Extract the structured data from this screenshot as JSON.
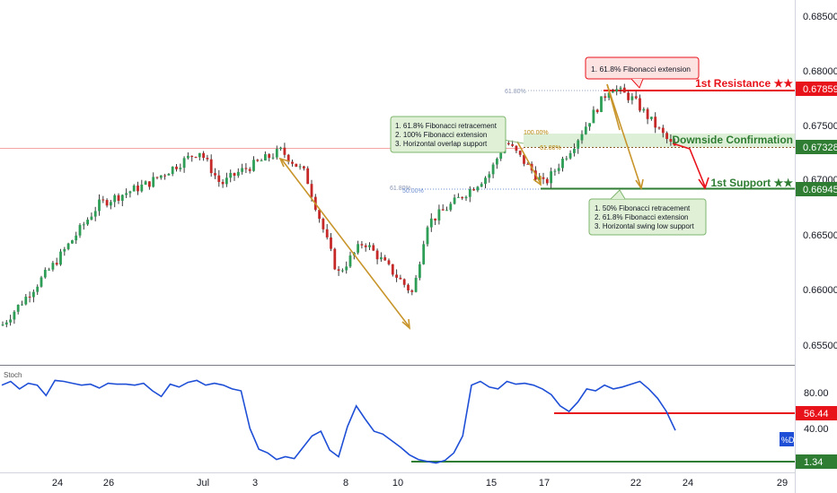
{
  "chart_data": {
    "type": "candlestick",
    "symbol_pair_note": "",
    "price_axis": {
      "ticks": [
        "0.68500",
        "0.68000",
        "0.67500",
        "0.67000",
        "0.66500",
        "0.66000",
        "0.65500"
      ],
      "ylim": [
        0.6532,
        0.6866
      ]
    },
    "time_axis": {
      "ticks": [
        "24",
        "26",
        "Jul",
        "3",
        "8",
        "10",
        "15",
        "17",
        "22",
        "24",
        "29"
      ]
    },
    "price_labels": [
      {
        "name": "1st Resistance ★★",
        "value": "0.67859",
        "color": "#e8121a"
      },
      {
        "name": "Downside Confirmation",
        "value": "0.67328",
        "color": "#2e7d32"
      },
      {
        "name": "1st Support ★★",
        "value": "0.66945",
        "color": "#2e7d32"
      }
    ],
    "fib_labels": [
      {
        "text": "61.80%",
        "price": 0.6785
      },
      {
        "text": "100.00%",
        "price": 0.6741
      },
      {
        "text": "61.80%",
        "price": 0.6733
      },
      {
        "text": "61.80%",
        "price": 0.66945
      },
      {
        "text": "50.00%",
        "price": 0.66935
      }
    ],
    "annotations": [
      {
        "id": "resistance",
        "lines": [
          "1. 61.8% Fibonacci extension"
        ]
      },
      {
        "id": "confirmation",
        "lines": [
          "1. 61.8% Fibonacci retracement",
          "2. 100% Fibonacci extension",
          "3. Horizontal overlap support"
        ]
      },
      {
        "id": "support",
        "lines": [
          "1. 50% Fibonacci retracement",
          "2. 61.8% Fibonacci extension",
          "3. Horizontal swing low support"
        ]
      }
    ],
    "trend_anchors": [
      {
        "price": 0.6568,
        "label": "start"
      },
      {
        "price": 0.6743,
        "label": "peak"
      },
      {
        "price": 0.6735,
        "label": "pullback-1"
      },
      {
        "price": 0.6786,
        "label": "high"
      },
      {
        "price": 0.672,
        "label": "b"
      },
      {
        "price": 0.6755,
        "label": "c"
      },
      {
        "price": 0.673,
        "label": "d"
      },
      {
        "price": 0.6707,
        "label": "e"
      },
      {
        "price": 0.6743,
        "label": "f"
      },
      {
        "price": 0.6735,
        "label": "g"
      },
      {
        "price": 0.6698,
        "label": "h"
      },
      {
        "price": 0.6624,
        "label": "i"
      },
      {
        "price": 0.6597,
        "label": "j"
      },
      {
        "price": 0.6645,
        "label": "k"
      },
      {
        "price": 0.6679,
        "label": "l"
      },
      {
        "price": 0.6728,
        "label": "m"
      },
      {
        "price": 0.6697,
        "label": "n"
      },
      {
        "price": 0.6738,
        "label": "o"
      },
      {
        "price": 0.6787,
        "label": "p"
      },
      {
        "price": 0.677,
        "label": "q"
      },
      {
        "price": 0.6784,
        "label": "r"
      },
      {
        "price": 0.6731,
        "label": "end"
      }
    ],
    "oscillator": {
      "name": "Stoch",
      "ticks": [
        "80.00",
        "40.00"
      ],
      "ylim": [
        -2,
        98
      ],
      "markers": [
        {
          "value": "56.44",
          "color": "#e8121a"
        },
        {
          "value": "1.34",
          "color": "#2e7d32"
        }
      ],
      "series_label": "%D",
      "values": [
        84,
        88,
        80,
        86,
        84,
        73,
        89,
        88,
        86,
        84,
        85,
        81,
        86,
        85,
        85,
        84,
        86,
        78,
        72,
        85,
        82,
        87,
        89,
        84,
        86,
        84,
        80,
        78,
        38,
        16,
        12,
        5,
        8,
        6,
        18,
        30,
        35,
        15,
        8,
        40,
        62,
        48,
        35,
        32,
        25,
        18,
        10,
        5,
        3,
        1.34,
        4,
        12,
        30,
        84,
        88,
        82,
        80,
        88,
        85,
        86,
        84,
        80,
        74,
        62,
        56,
        66,
        80,
        78,
        84,
        80,
        82,
        85,
        88,
        80,
        70,
        56,
        36
      ]
    }
  }
}
